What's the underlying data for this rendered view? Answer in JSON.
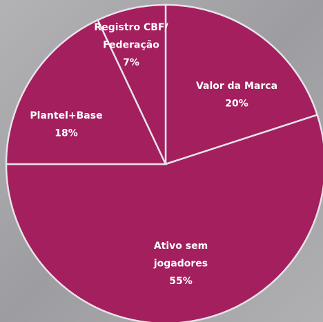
{
  "chart_data": {
    "type": "pie",
    "categories": [
      "Valor da Marca",
      "Ativo sem jogadores",
      "Plantel+Base",
      "Registro CBF/ Federação"
    ],
    "values": [
      20,
      55,
      18,
      7
    ],
    "value_labels": [
      "20%",
      "55%",
      "18%",
      "7%"
    ],
    "color": "#a31f5e"
  }
}
